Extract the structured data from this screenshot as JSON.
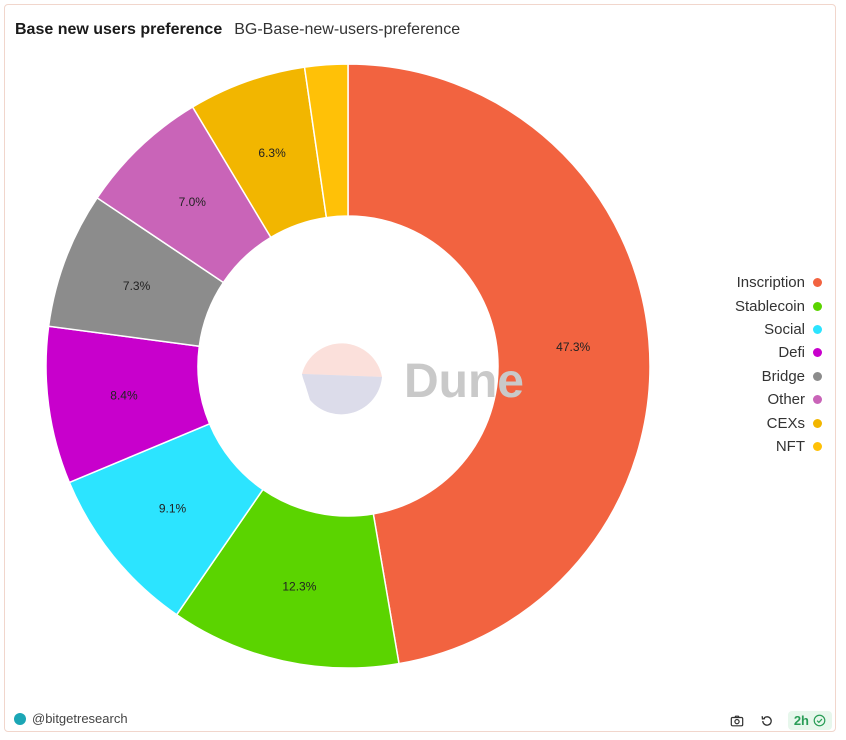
{
  "header": {
    "title": "Base new users preference",
    "subtitle": "BG-Base-new-users-preference"
  },
  "watermark": {
    "text": "Dune"
  },
  "chart_data": {
    "type": "pie",
    "donut": true,
    "title": "Base new users preference",
    "legend_position": "right",
    "slices": [
      {
        "name": "Inscription",
        "value": 47.3,
        "label": "47.3%",
        "color": "#f26340"
      },
      {
        "name": "Stablecoin",
        "value": 12.3,
        "label": "12.3%",
        "color": "#5bd400"
      },
      {
        "name": "Social",
        "value": 9.1,
        "label": "9.1%",
        "color": "#2ce4ff"
      },
      {
        "name": "Defi",
        "value": 8.4,
        "label": "8.4%",
        "color": "#c800cc"
      },
      {
        "name": "Bridge",
        "value": 7.3,
        "label": "7.3%",
        "color": "#8c8c8c"
      },
      {
        "name": "Other",
        "value": 7.0,
        "label": "7.0%",
        "color": "#c964b8"
      },
      {
        "name": "CEXs",
        "value": 6.3,
        "label": "6.3%",
        "color": "#f2b600"
      },
      {
        "name": "NFT",
        "value": 2.3,
        "label": "",
        "color": "#ffc107"
      }
    ]
  },
  "footer": {
    "author": "@bitgetresearch",
    "refresh_badge": "2h",
    "icons": [
      "camera-icon",
      "refresh-icon",
      "check-circle-icon"
    ]
  }
}
